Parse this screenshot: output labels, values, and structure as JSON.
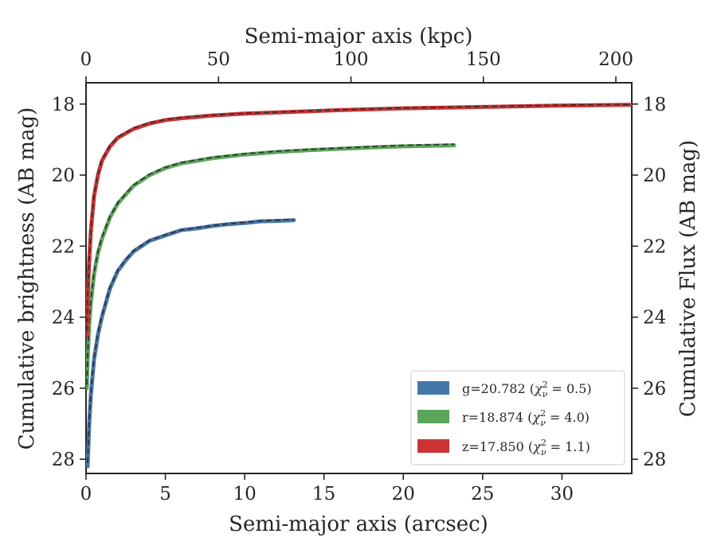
{
  "chart_data": {
    "type": "line",
    "title": "",
    "xlabel": "Semi-major axis (arcsec)",
    "ylabel": "Cumulative brightness (AB mag)",
    "x2label": "Semi-major axis (kpc)",
    "y2label": "Cumulative Flux (AB mag)",
    "xlim": [
      0,
      34.4
    ],
    "ylim": [
      28.4,
      17.4
    ],
    "y_inverted": true,
    "x2lim": [
      0,
      206
    ],
    "xticks": [
      "0",
      "5",
      "10",
      "15",
      "20",
      "25",
      "30"
    ],
    "x2ticks": [
      "0",
      "50",
      "100",
      "150",
      "200"
    ],
    "yticks": [
      "18",
      "20",
      "22",
      "24",
      "26",
      "28"
    ],
    "legend_position": "lower-right",
    "series": [
      {
        "name": "g=20.782 (χ²ᵥ = 0.5)",
        "label_prefix": "g=20.782 (",
        "label_chi": "χ",
        "label_exp": "2",
        "label_sub": "ν",
        "label_suffix": " = 0.5)",
        "color": "#4477aa",
        "x": [
          0.1,
          0.2,
          0.3,
          0.5,
          0.75,
          1.0,
          1.5,
          2.0,
          2.5,
          3.0,
          4.0,
          5.0,
          6.0,
          7.0,
          8.0,
          9.0,
          10.0,
          11.0,
          12.0,
          13.1
        ],
        "y": [
          28.2,
          27.0,
          26.2,
          25.2,
          24.5,
          24.0,
          23.2,
          22.7,
          22.4,
          22.15,
          21.85,
          21.7,
          21.55,
          21.5,
          21.43,
          21.38,
          21.35,
          21.3,
          21.29,
          21.27
        ],
        "y_model": [
          28.1,
          26.9,
          26.15,
          25.15,
          24.45,
          23.95,
          23.17,
          22.68,
          22.38,
          22.13,
          21.84,
          21.68,
          21.55,
          21.48,
          21.42,
          21.37,
          21.33,
          21.29,
          21.27,
          21.25
        ]
      },
      {
        "name": "r=18.874 (χ²ᵥ = 4.0)",
        "label_prefix": "r=18.874 (",
        "label_chi": "χ",
        "label_exp": "2",
        "label_sub": "ν",
        "label_suffix": " = 4.0)",
        "color": "#5aa55a",
        "x": [
          0.05,
          0.1,
          0.2,
          0.3,
          0.5,
          0.75,
          1.0,
          1.5,
          2.0,
          3.0,
          4.0,
          5.0,
          6.0,
          8.0,
          10.0,
          12.0,
          14.0,
          16.0,
          18.0,
          20.0,
          23.2
        ],
        "y": [
          26.0,
          25.2,
          24.2,
          23.6,
          22.8,
          22.2,
          21.8,
          21.2,
          20.8,
          20.3,
          20.0,
          19.8,
          19.67,
          19.52,
          19.42,
          19.35,
          19.3,
          19.26,
          19.22,
          19.19,
          19.16
        ],
        "y_model": [
          25.9,
          25.1,
          24.1,
          23.55,
          22.75,
          22.15,
          21.75,
          21.17,
          20.78,
          20.28,
          19.98,
          19.78,
          19.65,
          19.5,
          19.4,
          19.33,
          19.28,
          19.24,
          19.2,
          19.16,
          19.13
        ]
      },
      {
        "name": "z=17.850 (χ²ᵥ = 1.1)",
        "label_prefix": "z=17.850 (",
        "label_chi": "χ",
        "label_exp": "2",
        "label_sub": "ν",
        "label_suffix": " = 1.1)",
        "color": "#cc3333",
        "x": [
          0.05,
          0.1,
          0.2,
          0.3,
          0.5,
          0.75,
          1.0,
          1.5,
          2.0,
          3.0,
          4.0,
          5.0,
          6.0,
          8.0,
          10.0,
          13.0,
          16.0,
          20.0,
          25.0,
          30.0,
          34.4
        ],
        "y": [
          24.5,
          23.5,
          22.4,
          21.6,
          20.6,
          20.0,
          19.6,
          19.2,
          18.95,
          18.7,
          18.55,
          18.45,
          18.4,
          18.32,
          18.27,
          18.22,
          18.17,
          18.12,
          18.08,
          18.04,
          18.02
        ],
        "y_model": [
          24.4,
          23.45,
          22.35,
          21.55,
          20.58,
          19.98,
          19.58,
          19.18,
          18.93,
          18.68,
          18.53,
          18.44,
          18.38,
          18.31,
          18.26,
          18.21,
          18.16,
          18.11,
          18.07,
          18.03,
          18.01
        ]
      }
    ]
  }
}
